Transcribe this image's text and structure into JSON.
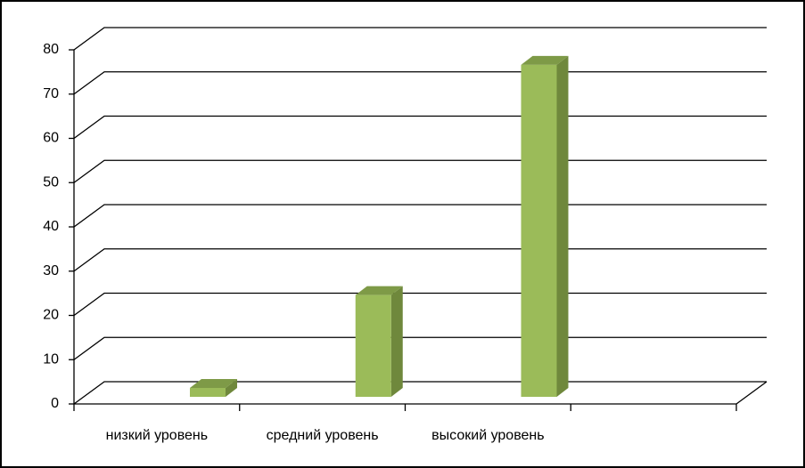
{
  "chart_data": {
    "type": "bar3d",
    "categories": [
      "низкий уровень",
      "средний уровень",
      "высокий уровень",
      null
    ],
    "values": [
      2,
      23,
      75,
      null
    ],
    "color": "#9bbb59",
    "ylim": [
      0,
      80
    ],
    "yticks": [
      0,
      10,
      20,
      30,
      40,
      50,
      60,
      70,
      80
    ],
    "grid": true
  }
}
